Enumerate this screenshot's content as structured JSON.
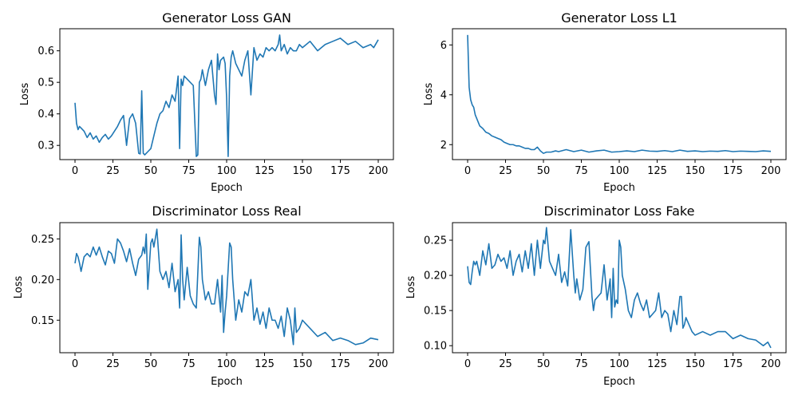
{
  "chart_data": [
    {
      "type": "line",
      "title": "Generator Loss GAN",
      "xlabel": "Epoch",
      "ylabel": "Loss",
      "xlim": [
        -10,
        210
      ],
      "ylim": [
        0.255,
        0.67
      ],
      "xticks": [
        0,
        25,
        50,
        75,
        100,
        125,
        150,
        175,
        200
      ],
      "yticks": [
        0.3,
        0.4,
        0.5,
        0.6
      ],
      "ytick_labels": [
        "0.3",
        "0.4",
        "0.5",
        "0.6"
      ],
      "color": "#1f77b4",
      "series": [
        {
          "x": [
            0,
            1,
            2,
            3,
            4,
            6,
            8,
            10,
            12,
            14,
            16,
            18,
            20,
            22,
            24,
            26,
            28,
            30,
            32,
            34,
            36,
            38,
            40,
            42,
            43,
            44,
            45,
            46,
            47,
            48,
            50,
            52,
            54,
            56,
            58,
            60,
            62,
            64,
            66,
            68,
            69,
            70,
            71,
            72,
            74,
            76,
            78,
            80,
            81,
            82,
            83,
            84,
            86,
            88,
            90,
            92,
            93,
            94,
            95,
            96,
            98,
            99,
            100,
            101,
            102,
            103,
            104,
            106,
            108,
            110,
            112,
            114,
            116,
            118,
            120,
            122,
            124,
            126,
            128,
            130,
            132,
            134,
            135,
            136,
            138,
            140,
            142,
            144,
            146,
            148,
            150,
            155,
            160,
            165,
            170,
            175,
            180,
            185,
            190,
            195,
            197,
            200
          ],
          "values": [
            0.435,
            0.37,
            0.35,
            0.36,
            0.355,
            0.345,
            0.325,
            0.34,
            0.32,
            0.33,
            0.31,
            0.325,
            0.335,
            0.32,
            0.33,
            0.345,
            0.36,
            0.38,
            0.395,
            0.3,
            0.385,
            0.4,
            0.37,
            0.275,
            0.273,
            0.473,
            0.275,
            0.27,
            0.275,
            0.28,
            0.29,
            0.33,
            0.37,
            0.4,
            0.41,
            0.44,
            0.42,
            0.46,
            0.44,
            0.52,
            0.29,
            0.51,
            0.49,
            0.52,
            0.51,
            0.5,
            0.49,
            0.265,
            0.27,
            0.5,
            0.51,
            0.54,
            0.49,
            0.54,
            0.57,
            0.46,
            0.43,
            0.59,
            0.54,
            0.57,
            0.58,
            0.56,
            0.45,
            0.265,
            0.52,
            0.58,
            0.6,
            0.56,
            0.54,
            0.52,
            0.57,
            0.6,
            0.46,
            0.61,
            0.57,
            0.59,
            0.58,
            0.61,
            0.6,
            0.61,
            0.6,
            0.62,
            0.65,
            0.6,
            0.62,
            0.59,
            0.61,
            0.6,
            0.6,
            0.62,
            0.61,
            0.63,
            0.6,
            0.62,
            0.63,
            0.64,
            0.62,
            0.63,
            0.61,
            0.62,
            0.61,
            0.635
          ]
        }
      ]
    },
    {
      "type": "line",
      "title": "Generator Loss L1",
      "xlabel": "Epoch",
      "ylabel": "Loss",
      "xlim": [
        -10,
        210
      ],
      "ylim": [
        1.4,
        6.65
      ],
      "xticks": [
        0,
        25,
        50,
        75,
        100,
        125,
        150,
        175,
        200
      ],
      "yticks": [
        2,
        4,
        6
      ],
      "ytick_labels": [
        "2",
        "4",
        "6"
      ],
      "color": "#1f77b4",
      "series": [
        {
          "x": [
            0,
            1,
            2,
            3,
            4,
            5,
            6,
            7,
            8,
            9,
            10,
            12,
            14,
            16,
            18,
            20,
            22,
            24,
            26,
            28,
            30,
            32,
            34,
            36,
            38,
            40,
            42,
            44,
            46,
            48,
            50,
            52,
            55,
            58,
            60,
            65,
            70,
            75,
            80,
            85,
            90,
            95,
            100,
            105,
            110,
            115,
            120,
            125,
            130,
            135,
            140,
            145,
            150,
            155,
            160,
            165,
            170,
            175,
            180,
            185,
            190,
            195,
            200
          ],
          "values": [
            6.4,
            4.3,
            3.8,
            3.6,
            3.5,
            3.2,
            3.05,
            2.9,
            2.75,
            2.7,
            2.65,
            2.5,
            2.45,
            2.35,
            2.3,
            2.25,
            2.2,
            2.1,
            2.05,
            2.0,
            2.0,
            1.95,
            1.95,
            1.9,
            1.85,
            1.85,
            1.8,
            1.8,
            1.9,
            1.75,
            1.65,
            1.7,
            1.7,
            1.75,
            1.72,
            1.8,
            1.72,
            1.78,
            1.7,
            1.75,
            1.78,
            1.7,
            1.72,
            1.75,
            1.72,
            1.78,
            1.74,
            1.73,
            1.76,
            1.72,
            1.78,
            1.73,
            1.75,
            1.72,
            1.74,
            1.73,
            1.76,
            1.72,
            1.74,
            1.73,
            1.72,
            1.75,
            1.73
          ]
        }
      ]
    },
    {
      "type": "line",
      "title": "Discriminator Loss Real",
      "xlabel": "Epoch",
      "ylabel": "Loss",
      "xlim": [
        -10,
        210
      ],
      "ylim": [
        0.11,
        0.27
      ],
      "xticks": [
        0,
        25,
        50,
        75,
        100,
        125,
        150,
        175,
        200
      ],
      "yticks": [
        0.15,
        0.2,
        0.25
      ],
      "ytick_labels": [
        "0.15",
        "0.20",
        "0.25"
      ],
      "color": "#1f77b4",
      "series": [
        {
          "x": [
            0,
            1,
            2,
            3,
            4,
            6,
            8,
            10,
            12,
            14,
            16,
            18,
            20,
            22,
            24,
            26,
            28,
            30,
            32,
            34,
            36,
            38,
            40,
            42,
            44,
            45,
            46,
            47,
            48,
            50,
            51,
            52,
            54,
            56,
            58,
            60,
            62,
            64,
            66,
            68,
            69,
            70,
            71,
            72,
            74,
            76,
            78,
            80,
            82,
            83,
            84,
            86,
            88,
            90,
            92,
            94,
            96,
            97,
            98,
            99,
            100,
            102,
            103,
            104,
            106,
            108,
            110,
            112,
            114,
            116,
            118,
            120,
            122,
            124,
            126,
            128,
            130,
            132,
            134,
            136,
            138,
            140,
            142,
            144,
            145,
            146,
            148,
            150,
            155,
            160,
            165,
            170,
            175,
            180,
            185,
            190,
            195,
            200
          ],
          "values": [
            0.22,
            0.232,
            0.228,
            0.22,
            0.21,
            0.228,
            0.232,
            0.228,
            0.24,
            0.23,
            0.24,
            0.228,
            0.218,
            0.235,
            0.232,
            0.22,
            0.25,
            0.245,
            0.235,
            0.222,
            0.238,
            0.22,
            0.205,
            0.225,
            0.23,
            0.24,
            0.232,
            0.256,
            0.188,
            0.245,
            0.25,
            0.24,
            0.262,
            0.21,
            0.2,
            0.21,
            0.19,
            0.22,
            0.185,
            0.2,
            0.165,
            0.255,
            0.2,
            0.175,
            0.215,
            0.18,
            0.17,
            0.165,
            0.252,
            0.24,
            0.2,
            0.175,
            0.185,
            0.17,
            0.17,
            0.2,
            0.16,
            0.205,
            0.135,
            0.16,
            0.18,
            0.245,
            0.24,
            0.2,
            0.15,
            0.175,
            0.16,
            0.185,
            0.18,
            0.2,
            0.15,
            0.165,
            0.145,
            0.16,
            0.14,
            0.165,
            0.15,
            0.15,
            0.14,
            0.155,
            0.13,
            0.165,
            0.15,
            0.12,
            0.165,
            0.135,
            0.14,
            0.15,
            0.14,
            0.13,
            0.135,
            0.125,
            0.128,
            0.125,
            0.12,
            0.122,
            0.128,
            0.126
          ]
        }
      ]
    },
    {
      "type": "line",
      "title": "Discriminator Loss Fake",
      "xlabel": "Epoch",
      "ylabel": "Loss",
      "xlim": [
        -10,
        210
      ],
      "ylim": [
        0.09,
        0.275
      ],
      "xticks": [
        0,
        25,
        50,
        75,
        100,
        125,
        150,
        175,
        200
      ],
      "yticks": [
        0.1,
        0.15,
        0.2,
        0.25
      ],
      "ytick_labels": [
        "0.10",
        "0.15",
        "0.20",
        "0.25"
      ],
      "color": "#1f77b4",
      "series": [
        {
          "x": [
            0,
            1,
            2,
            3,
            4,
            5,
            6,
            8,
            10,
            12,
            14,
            16,
            18,
            20,
            22,
            24,
            26,
            28,
            30,
            32,
            34,
            36,
            38,
            40,
            42,
            44,
            46,
            48,
            50,
            51,
            52,
            54,
            56,
            58,
            60,
            62,
            64,
            66,
            68,
            70,
            71,
            72,
            74,
            76,
            78,
            80,
            82,
            83,
            84,
            86,
            88,
            90,
            92,
            94,
            95,
            96,
            97,
            98,
            99,
            100,
            101,
            102,
            104,
            106,
            108,
            110,
            112,
            114,
            116,
            118,
            120,
            122,
            124,
            126,
            128,
            130,
            132,
            134,
            136,
            138,
            140,
            141,
            142,
            143,
            144,
            146,
            148,
            150,
            155,
            160,
            165,
            170,
            175,
            180,
            185,
            190,
            195,
            198,
            200
          ],
          "values": [
            0.213,
            0.19,
            0.187,
            0.205,
            0.22,
            0.215,
            0.22,
            0.2,
            0.235,
            0.215,
            0.245,
            0.21,
            0.215,
            0.23,
            0.22,
            0.225,
            0.21,
            0.235,
            0.2,
            0.22,
            0.23,
            0.205,
            0.235,
            0.21,
            0.245,
            0.2,
            0.25,
            0.21,
            0.25,
            0.245,
            0.268,
            0.22,
            0.21,
            0.2,
            0.23,
            0.19,
            0.205,
            0.185,
            0.265,
            0.2,
            0.175,
            0.195,
            0.165,
            0.18,
            0.24,
            0.248,
            0.17,
            0.15,
            0.165,
            0.17,
            0.175,
            0.215,
            0.165,
            0.195,
            0.14,
            0.21,
            0.155,
            0.165,
            0.16,
            0.25,
            0.24,
            0.2,
            0.18,
            0.15,
            0.14,
            0.165,
            0.175,
            0.16,
            0.15,
            0.165,
            0.14,
            0.145,
            0.15,
            0.175,
            0.14,
            0.15,
            0.145,
            0.12,
            0.15,
            0.13,
            0.17,
            0.17,
            0.125,
            0.13,
            0.14,
            0.13,
            0.12,
            0.115,
            0.12,
            0.115,
            0.12,
            0.12,
            0.11,
            0.115,
            0.11,
            0.108,
            0.1,
            0.105,
            0.097
          ]
        }
      ]
    }
  ]
}
